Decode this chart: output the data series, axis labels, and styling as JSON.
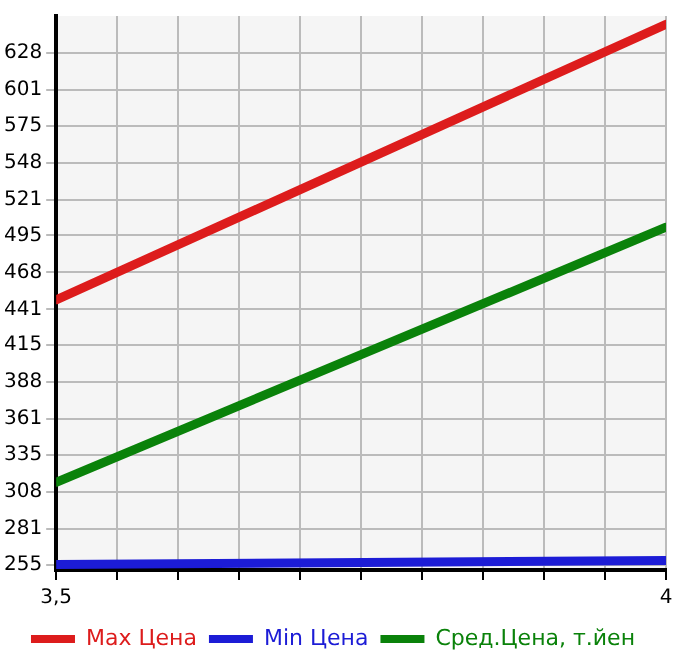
{
  "chart_data": {
    "type": "line",
    "x": [
      3.5,
      4
    ],
    "series": [
      {
        "name": "Max Цена",
        "color": "#dd1c1c",
        "values": [
          448,
          649
        ]
      },
      {
        "name": "Min Цена",
        "color": "#1c1cd6",
        "values": [
          255,
          258
        ]
      },
      {
        "name": "Сред.Цена, т.йен",
        "color": "#0a820a",
        "values": [
          315,
          501
        ]
      }
    ],
    "xlim": [
      3.5,
      4
    ],
    "xticks": [
      {
        "value": 3.5,
        "label": "3,5"
      },
      {
        "value": 3.55,
        "label": null
      },
      {
        "value": 3.6,
        "label": null
      },
      {
        "value": 3.65,
        "label": null
      },
      {
        "value": 3.7,
        "label": null
      },
      {
        "value": 3.75,
        "label": null
      },
      {
        "value": 3.8,
        "label": null
      },
      {
        "value": 3.85,
        "label": null
      },
      {
        "value": 3.9,
        "label": null
      },
      {
        "value": 3.95,
        "label": null
      },
      4
    ],
    "ylim": [
      251,
      655
    ],
    "yticks": [
      255,
      281,
      308,
      335,
      361,
      388,
      415,
      441,
      468,
      495,
      521,
      548,
      575,
      601,
      628
    ],
    "grid": true,
    "legend": "bottom",
    "marker": "none",
    "line_style": "solid"
  }
}
